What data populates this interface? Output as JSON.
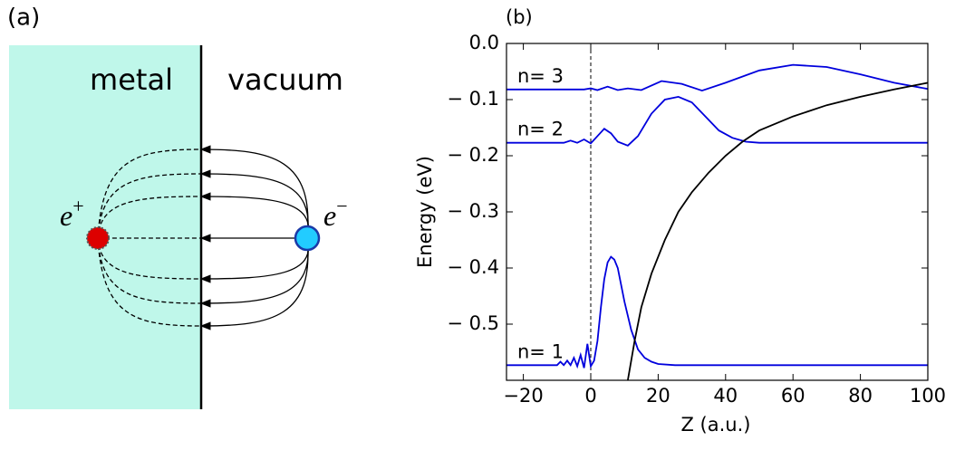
{
  "panel_a": {
    "label": "(a)",
    "metal": "metal",
    "vacuum": "vacuum",
    "positron": {
      "symbol": "e",
      "charge": "+"
    },
    "electron": {
      "symbol": "e",
      "charge": "−"
    }
  },
  "chart_data": {
    "type": "line",
    "panel_label": "(b)",
    "xlabel": "Z (a.u.)",
    "ylabel": "Energy (eV)",
    "xlim": [
      -25,
      100
    ],
    "ylim": [
      -0.6,
      0
    ],
    "xticks": [
      {
        "value": -20,
        "label": "−20"
      },
      0,
      20,
      40,
      60,
      80,
      100
    ],
    "yticks": [
      {
        "value": 0,
        "label": "0.0"
      },
      {
        "value": -0.1,
        "label": "− 0.1"
      },
      {
        "value": -0.2,
        "label": "− 0.2"
      },
      {
        "value": -0.3,
        "label": "− 0.3"
      },
      {
        "value": -0.4,
        "label": "− 0.4"
      },
      {
        "value": -0.5,
        "label": "− 0.5"
      }
    ],
    "vlines": [
      0
    ],
    "series": [
      {
        "name": "n= 1",
        "color": "#0000dd",
        "x": [
          -25,
          -10,
          -9,
          -8,
          -7,
          -6,
          -5,
          -4,
          -3,
          -2,
          -1,
          0,
          1,
          2,
          3,
          4,
          5,
          6,
          7,
          8,
          9,
          10,
          12,
          14,
          16,
          18,
          20,
          25,
          100
        ],
        "values": [
          -0.573,
          -0.573,
          -0.567,
          -0.573,
          -0.565,
          -0.573,
          -0.56,
          -0.575,
          -0.555,
          -0.578,
          -0.535,
          -0.575,
          -0.565,
          -0.53,
          -0.47,
          -0.42,
          -0.39,
          -0.38,
          -0.385,
          -0.4,
          -0.43,
          -0.46,
          -0.51,
          -0.545,
          -0.56,
          -0.567,
          -0.571,
          -0.573,
          -0.573
        ]
      },
      {
        "name": "n= 2",
        "color": "#0000dd",
        "x": [
          -25,
          -8,
          -6,
          -4,
          -2,
          0,
          2,
          4,
          6,
          8,
          11,
          14,
          18,
          22,
          26,
          30,
          34,
          38,
          42,
          46,
          50,
          100
        ],
        "values": [
          -0.177,
          -0.177,
          -0.173,
          -0.177,
          -0.171,
          -0.178,
          -0.165,
          -0.152,
          -0.16,
          -0.175,
          -0.182,
          -0.165,
          -0.125,
          -0.1,
          -0.095,
          -0.105,
          -0.13,
          -0.155,
          -0.168,
          -0.175,
          -0.177,
          -0.177
        ]
      },
      {
        "name": "n= 3",
        "color": "#0000dd",
        "x": [
          -25,
          -2,
          0,
          2,
          5,
          8,
          11,
          15,
          21,
          27,
          33,
          40,
          50,
          60,
          70,
          80,
          90,
          100
        ],
        "values": [
          -0.082,
          -0.082,
          -0.08,
          -0.083,
          -0.077,
          -0.083,
          -0.08,
          -0.083,
          -0.067,
          -0.072,
          -0.084,
          -0.07,
          -0.048,
          -0.038,
          -0.042,
          -0.055,
          -0.07,
          -0.081
        ]
      },
      {
        "name": "",
        "color": "#000000",
        "x": [
          11,
          13,
          15,
          18,
          22,
          26,
          30,
          35,
          40,
          45,
          50,
          60,
          70,
          80,
          90,
          100
        ],
        "values": [
          -0.6,
          -0.53,
          -0.47,
          -0.41,
          -0.35,
          -0.3,
          -0.265,
          -0.23,
          -0.2,
          -0.175,
          -0.155,
          -0.13,
          -0.11,
          -0.095,
          -0.082,
          -0.07
        ]
      }
    ]
  }
}
